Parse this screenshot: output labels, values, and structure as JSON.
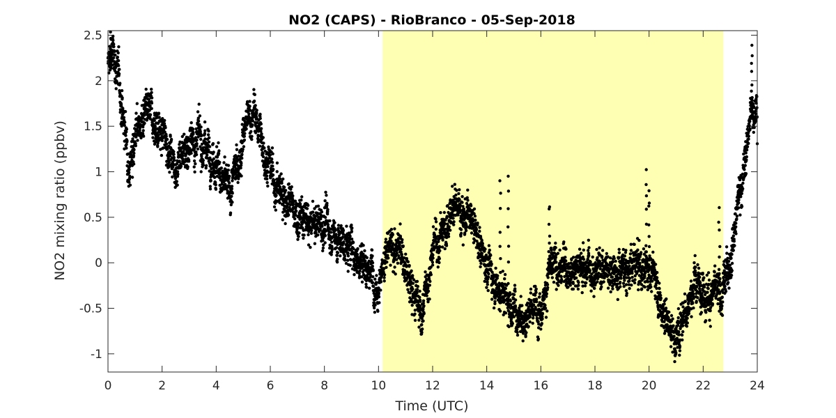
{
  "chart_data": {
    "type": "scatter",
    "title": "NO2 (CAPS) - RioBranco - 05-Sep-2018",
    "xlabel": "Time (UTC)",
    "ylabel": "NO2 mixing ratio (ppbv)",
    "xlim": [
      0,
      24
    ],
    "ylim": [
      -1.2,
      2.55
    ],
    "xticks": [
      0,
      2,
      4,
      6,
      8,
      10,
      12,
      14,
      16,
      18,
      20,
      22,
      24
    ],
    "yticks": [
      -1,
      -0.5,
      0,
      0.5,
      1,
      1.5,
      2,
      2.5
    ],
    "grid": false,
    "marker_color": "#000000",
    "daytime_shading": {
      "x_start": 10.15,
      "x_end": 22.75,
      "color": "#ffffb3"
    },
    "series": [
      {
        "trend": [
          [
            0.0,
            2.15
          ],
          [
            0.2,
            2.3
          ],
          [
            0.4,
            2.0
          ],
          [
            0.6,
            1.5
          ],
          [
            0.8,
            1.1
          ],
          [
            1.0,
            1.45
          ],
          [
            1.3,
            1.55
          ],
          [
            1.6,
            1.6
          ],
          [
            1.9,
            1.45
          ],
          [
            2.2,
            1.3
          ],
          [
            2.5,
            1.1
          ],
          [
            2.8,
            1.25
          ],
          [
            3.2,
            1.35
          ],
          [
            3.6,
            1.3
          ],
          [
            3.9,
            1.2
          ],
          [
            4.2,
            0.95
          ],
          [
            4.5,
            0.7
          ],
          [
            4.8,
            1.1
          ],
          [
            5.1,
            1.5
          ],
          [
            5.4,
            1.65
          ],
          [
            5.8,
            1.2
          ],
          [
            6.2,
            0.85
          ],
          [
            6.6,
            0.7
          ],
          [
            7.0,
            0.5
          ],
          [
            7.5,
            0.4
          ],
          [
            8.0,
            0.45
          ],
          [
            8.5,
            0.25
          ],
          [
            9.0,
            0.15
          ],
          [
            9.5,
            0.0
          ],
          [
            10.0,
            -0.2
          ],
          [
            10.3,
            0.1
          ],
          [
            10.8,
            0.15
          ],
          [
            11.2,
            -0.3
          ],
          [
            11.6,
            -0.55
          ],
          [
            12.0,
            0.1
          ],
          [
            12.5,
            0.45
          ],
          [
            12.9,
            0.65
          ],
          [
            13.2,
            0.55
          ],
          [
            13.6,
            0.3
          ],
          [
            14.0,
            0.0
          ],
          [
            14.5,
            -0.3
          ],
          [
            15.0,
            -0.5
          ],
          [
            15.5,
            -0.55
          ],
          [
            16.0,
            -0.45
          ],
          [
            16.3,
            -0.1
          ],
          [
            16.8,
            -0.05
          ],
          [
            17.5,
            -0.05
          ],
          [
            18.2,
            -0.05
          ],
          [
            19.0,
            -0.05
          ],
          [
            19.8,
            -0.05
          ],
          [
            20.2,
            -0.1
          ],
          [
            20.5,
            -0.5
          ],
          [
            21.0,
            -0.85
          ],
          [
            21.3,
            -0.5
          ],
          [
            21.8,
            -0.2
          ],
          [
            22.3,
            -0.35
          ],
          [
            22.7,
            -0.4
          ],
          [
            23.0,
            0.1
          ],
          [
            23.3,
            0.7
          ],
          [
            23.6,
            1.2
          ],
          [
            23.8,
            1.7
          ],
          [
            24.0,
            1.8
          ]
        ],
        "spikes": [
          [
            14.5,
            0.9
          ],
          [
            14.8,
            0.95
          ],
          [
            16.3,
            0.65
          ],
          [
            19.9,
            1.05
          ],
          [
            20.0,
            0.8
          ],
          [
            22.6,
            0.6
          ],
          [
            23.8,
            2.4
          ],
          [
            0.1,
            2.5
          ]
        ]
      }
    ]
  }
}
